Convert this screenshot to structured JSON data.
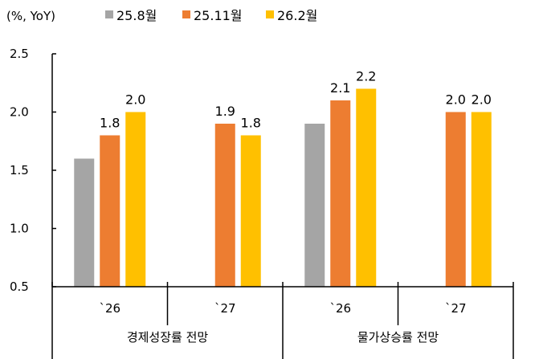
{
  "chart_data": {
    "type": "bar",
    "unit_label": "(%, YoY)",
    "groups": [
      {
        "label": "경제성장률 전망",
        "categories": [
          "`26",
          "`27"
        ]
      },
      {
        "label": "물가상승률 전망",
        "categories": [
          "`26",
          "`27"
        ]
      }
    ],
    "categories": [
      "`26",
      "`27",
      "`26",
      "`27"
    ],
    "series": [
      {
        "name": "25.8월",
        "color": "#A5A5A5",
        "values": [
          1.6,
          null,
          1.9,
          null
        ],
        "labels": [
          null,
          null,
          null,
          null
        ]
      },
      {
        "name": "25.11월",
        "color": "#ED7D31",
        "values": [
          1.8,
          1.9,
          2.1,
          2.0
        ],
        "labels": [
          "1.8",
          "1.9",
          "2.1",
          "2.0"
        ]
      },
      {
        "name": "26.2월",
        "color": "#FFC000",
        "values": [
          2.0,
          1.8,
          2.2,
          2.0
        ],
        "labels": [
          "2.0",
          "1.8",
          "2.2",
          "2.0"
        ]
      }
    ],
    "ylim": [
      0.5,
      2.5
    ],
    "yticks": [
      "0.5",
      "1.0",
      "1.5",
      "2.0",
      "2.5"
    ],
    "grid": false,
    "legend_position": "top"
  }
}
